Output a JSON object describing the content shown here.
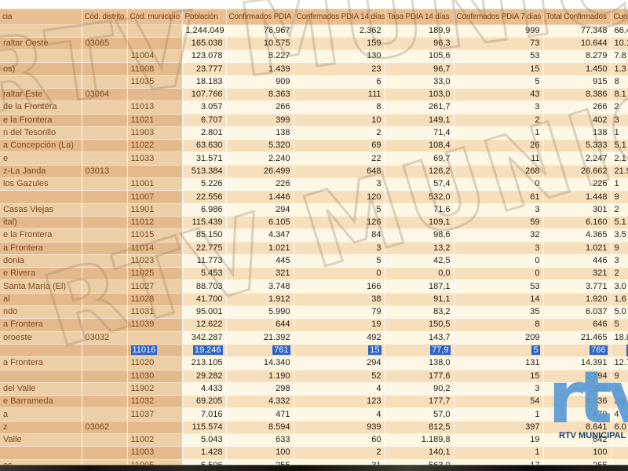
{
  "table": {
    "columns": [
      {
        "key": "name",
        "label": "cia"
      },
      {
        "key": "distrito",
        "label": "Cód. distrito"
      },
      {
        "key": "municipio",
        "label": "Cód. municipio"
      },
      {
        "key": "poblacion",
        "label": "Población"
      },
      {
        "key": "confirmados",
        "label": "Confirmados PDIA"
      },
      {
        "key": "conf14",
        "label": "Confirmados PDIA 14 días"
      },
      {
        "key": "tasa14",
        "label": "Tasa PDIA 14 días"
      },
      {
        "key": "conf7",
        "label": "Confirmados PDIA 7 días"
      },
      {
        "key": "total",
        "label": "Total Confirmados"
      },
      {
        "key": "curados",
        "label": "Cura"
      }
    ],
    "rows": [
      {
        "name": "",
        "distrito": "",
        "municipio": "",
        "poblacion": "1.244.049",
        "confirmados": "76.967",
        "conf14": "2.362",
        "tasa14": "189,9",
        "conf7": "999",
        "total": "77.348",
        "curados": "66.4",
        "kind": "total",
        "selected": false
      },
      {
        "name": "raltar Oeste",
        "distrito": "03065",
        "municipio": "",
        "poblacion": "165.038",
        "confirmados": "10.575",
        "conf14": "159",
        "tasa14": "96,3",
        "conf7": "73",
        "total": "10.644",
        "curados": "10.1",
        "kind": "district",
        "selected": false
      },
      {
        "name": "",
        "distrito": "",
        "municipio": "11004",
        "poblacion": "123.078",
        "confirmados": "8.227",
        "conf14": "130",
        "tasa14": "105,6",
        "conf7": "53",
        "total": "8.279",
        "curados": "7.8",
        "kind": "municipality",
        "selected": false
      },
      {
        "name": "os)",
        "distrito": "",
        "municipio": "11008",
        "poblacion": "23.777",
        "confirmados": "1.439",
        "conf14": "23",
        "tasa14": "96,7",
        "conf7": "15",
        "total": "1.450",
        "curados": "1.3",
        "kind": "municipality",
        "selected": false
      },
      {
        "name": "",
        "distrito": "",
        "municipio": "11035",
        "poblacion": "18.183",
        "confirmados": "909",
        "conf14": "6",
        "tasa14": "33,0",
        "conf7": "5",
        "total": "915",
        "curados": "8",
        "kind": "municipality",
        "selected": false
      },
      {
        "name": "raltar Este",
        "distrito": "03064",
        "municipio": "",
        "poblacion": "107.766",
        "confirmados": "8.363",
        "conf14": "111",
        "tasa14": "103,0",
        "conf7": "43",
        "total": "8.386",
        "curados": "8.1",
        "kind": "district",
        "selected": false
      },
      {
        "name": "de la Frontera",
        "distrito": "",
        "municipio": "11013",
        "poblacion": "3.057",
        "confirmados": "266",
        "conf14": "8",
        "tasa14": "261,7",
        "conf7": "3",
        "total": "266",
        "curados": "2",
        "kind": "municipality",
        "selected": false
      },
      {
        "name": "e la Frontera",
        "distrito": "",
        "municipio": "11021",
        "poblacion": "6.707",
        "confirmados": "399",
        "conf14": "10",
        "tasa14": "149,1",
        "conf7": "2",
        "total": "402",
        "curados": "3",
        "kind": "municipality",
        "selected": false
      },
      {
        "name": "n del Tesorillo",
        "distrito": "",
        "municipio": "11903",
        "poblacion": "2.801",
        "confirmados": "138",
        "conf14": "2",
        "tasa14": "71,4",
        "conf7": "1",
        "total": "138",
        "curados": "1",
        "kind": "municipality",
        "selected": false
      },
      {
        "name": "a Concepción (La)",
        "distrito": "",
        "municipio": "11022",
        "poblacion": "63.630",
        "confirmados": "5.320",
        "conf14": "69",
        "tasa14": "108,4",
        "conf7": "26",
        "total": "5.333",
        "curados": "5.1",
        "kind": "municipality",
        "selected": false
      },
      {
        "name": "e",
        "distrito": "",
        "municipio": "11033",
        "poblacion": "31.571",
        "confirmados": "2.240",
        "conf14": "22",
        "tasa14": "69,7",
        "conf7": "11",
        "total": "2.247",
        "curados": "2.1",
        "kind": "municipality",
        "selected": false
      },
      {
        "name": "z-La Janda",
        "distrito": "03013",
        "municipio": "",
        "poblacion": "513.384",
        "confirmados": "26.499",
        "conf14": "648",
        "tasa14": "126,2",
        "conf7": "268",
        "total": "26.662",
        "curados": "21.9",
        "kind": "district",
        "selected": false
      },
      {
        "name": "los Gazules",
        "distrito": "",
        "municipio": "11001",
        "poblacion": "5.226",
        "confirmados": "226",
        "conf14": "3",
        "tasa14": "57,4",
        "conf7": "0",
        "total": "226",
        "curados": "1",
        "kind": "municipality",
        "selected": false
      },
      {
        "name": "",
        "distrito": "",
        "municipio": "11007",
        "poblacion": "22.556",
        "confirmados": "1.446",
        "conf14": "120",
        "tasa14": "532,0",
        "conf7": "61",
        "total": "1.448",
        "curados": "9",
        "kind": "municipality",
        "selected": false
      },
      {
        "name": "Casas Viejas",
        "distrito": "",
        "municipio": "11901",
        "poblacion": "6.986",
        "confirmados": "294",
        "conf14": "5",
        "tasa14": "71,6",
        "conf7": "3",
        "total": "301",
        "curados": "2",
        "kind": "municipality",
        "selected": false
      },
      {
        "name": "ital)",
        "distrito": "",
        "municipio": "11012",
        "poblacion": "115.439",
        "confirmados": "6.105",
        "conf14": "126",
        "tasa14": "109,1",
        "conf7": "59",
        "total": "6.160",
        "curados": "5.1",
        "kind": "municipality",
        "selected": false
      },
      {
        "name": "e la Frontera",
        "distrito": "",
        "municipio": "11015",
        "poblacion": "85.150",
        "confirmados": "4.347",
        "conf14": "84",
        "tasa14": "98,6",
        "conf7": "32",
        "total": "4.365",
        "curados": "3.5",
        "kind": "municipality",
        "selected": false
      },
      {
        "name": "a Frontera",
        "distrito": "",
        "municipio": "11014",
        "poblacion": "22.775",
        "confirmados": "1.021",
        "conf14": "3",
        "tasa14": "13,2",
        "conf7": "3",
        "total": "1.021",
        "curados": "9",
        "kind": "municipality",
        "selected": false
      },
      {
        "name": "donia",
        "distrito": "",
        "municipio": "11023",
        "poblacion": "11.773",
        "confirmados": "445",
        "conf14": "5",
        "tasa14": "42,5",
        "conf7": "0",
        "total": "446",
        "curados": "3",
        "kind": "municipality",
        "selected": false
      },
      {
        "name": "e Rivera",
        "distrito": "",
        "municipio": "11025",
        "poblacion": "5.453",
        "confirmados": "321",
        "conf14": "0",
        "tasa14": "0,0",
        "conf7": "0",
        "total": "321",
        "curados": "2",
        "kind": "municipality",
        "selected": false
      },
      {
        "name": "Santa María (El)",
        "distrito": "",
        "municipio": "11027",
        "poblacion": "88.703",
        "confirmados": "3.748",
        "conf14": "166",
        "tasa14": "187,1",
        "conf7": "53",
        "total": "3.771",
        "curados": "3.0",
        "kind": "municipality",
        "selected": false
      },
      {
        "name": "al",
        "distrito": "",
        "municipio": "11028",
        "poblacion": "41.700",
        "confirmados": "1.912",
        "conf14": "38",
        "tasa14": "91,1",
        "conf7": "14",
        "total": "1.920",
        "curados": "1.6",
        "kind": "municipality",
        "selected": false
      },
      {
        "name": "ndo",
        "distrito": "",
        "municipio": "11031",
        "poblacion": "95.001",
        "confirmados": "5.990",
        "conf14": "79",
        "tasa14": "83,2",
        "conf7": "35",
        "total": "6.037",
        "curados": "5.0",
        "kind": "municipality",
        "selected": false
      },
      {
        "name": "a Frontera",
        "distrito": "",
        "municipio": "11039",
        "poblacion": "12.622",
        "confirmados": "644",
        "conf14": "19",
        "tasa14": "150,5",
        "conf7": "8",
        "total": "646",
        "curados": "5",
        "kind": "municipality",
        "selected": false
      },
      {
        "name": "oroeste",
        "distrito": "03032",
        "municipio": "",
        "poblacion": "342.287",
        "confirmados": "21.392",
        "conf14": "492",
        "tasa14": "143,7",
        "conf7": "209",
        "total": "21.465",
        "curados": "18.8",
        "kind": "district",
        "selected": false
      },
      {
        "name": "",
        "distrito": "",
        "municipio": "11016",
        "poblacion": "19.246",
        "confirmados": "761",
        "conf14": "15",
        "tasa14": "77,9",
        "conf7": "5",
        "total": "766",
        "curados": "7",
        "kind": "municipality",
        "selected": true
      },
      {
        "name": "a Frontera",
        "distrito": "",
        "municipio": "11020",
        "poblacion": "213.105",
        "confirmados": "14.340",
        "conf14": "294",
        "tasa14": "138,0",
        "conf7": "131",
        "total": "14.391",
        "curados": "12.7",
        "kind": "municipality",
        "selected": false
      },
      {
        "name": "",
        "distrito": "",
        "municipio": "11030",
        "poblacion": "29.282",
        "confirmados": "1.190",
        "conf14": "52",
        "tasa14": "177,6",
        "conf7": "15",
        "total": "1.194",
        "curados": "9",
        "kind": "municipality",
        "selected": false
      },
      {
        "name": "del Valle",
        "distrito": "",
        "municipio": "11902",
        "poblacion": "4.433",
        "confirmados": "298",
        "conf14": "4",
        "tasa14": "90,2",
        "conf7": "3",
        "total": "299",
        "curados": "2",
        "kind": "municipality",
        "selected": false
      },
      {
        "name": "e Barrameda",
        "distrito": "",
        "municipio": "11032",
        "poblacion": "69.205",
        "confirmados": "4.332",
        "conf14": "123",
        "tasa14": "177,7",
        "conf7": "54",
        "total": "4.336",
        "curados": "3.6",
        "kind": "municipality",
        "selected": false
      },
      {
        "name": "a",
        "distrito": "",
        "municipio": "11037",
        "poblacion": "7.016",
        "confirmados": "471",
        "conf14": "4",
        "tasa14": "57,0",
        "conf7": "1",
        "total": "479",
        "curados": "4",
        "kind": "municipality",
        "selected": false
      },
      {
        "name": "z",
        "distrito": "03062",
        "municipio": "",
        "poblacion": "115.574",
        "confirmados": "8.594",
        "conf14": "939",
        "tasa14": "812,5",
        "conf7": "397",
        "total": "8.641",
        "curados": "6.0",
        "kind": "district",
        "selected": false
      },
      {
        "name": "Valle",
        "distrito": "",
        "municipio": "11002",
        "poblacion": "5.043",
        "confirmados": "633",
        "conf14": "60",
        "tasa14": "1.189,8",
        "conf7": "19",
        "total": "642",
        "curados": "",
        "kind": "municipality",
        "selected": false
      },
      {
        "name": "",
        "distrito": "",
        "municipio": "11003",
        "poblacion": "1.428",
        "confirmados": "100",
        "conf14": "2",
        "tasa14": "140,1",
        "conf7": "1",
        "total": "100",
        "curados": "",
        "kind": "municipality",
        "selected": false
      },
      {
        "name": "es",
        "distrito": "",
        "municipio": "11005",
        "poblacion": "5.506",
        "confirmados": "255",
        "conf14": "31",
        "tasa14": "563,0",
        "conf7": "17",
        "total": "255",
        "curados": "",
        "kind": "municipality",
        "selected": false
      }
    ]
  },
  "watermark": {
    "text": "RTV MUNICIPAL DE CHIPIONA",
    "logo_text": "rtv",
    "caption": "RTV MUNICIPAL DE CHIPIONA"
  },
  "colors": {
    "selection_blue": "#2e63c6",
    "logo_blue": "#5b9bd5",
    "header_tan": "#e9bf92",
    "row_tan_dark": "#e4ba8c",
    "row_tan_light": "#eccfa6",
    "data_cream": "#fdf7e6",
    "data_tan": "#f6dfba"
  }
}
